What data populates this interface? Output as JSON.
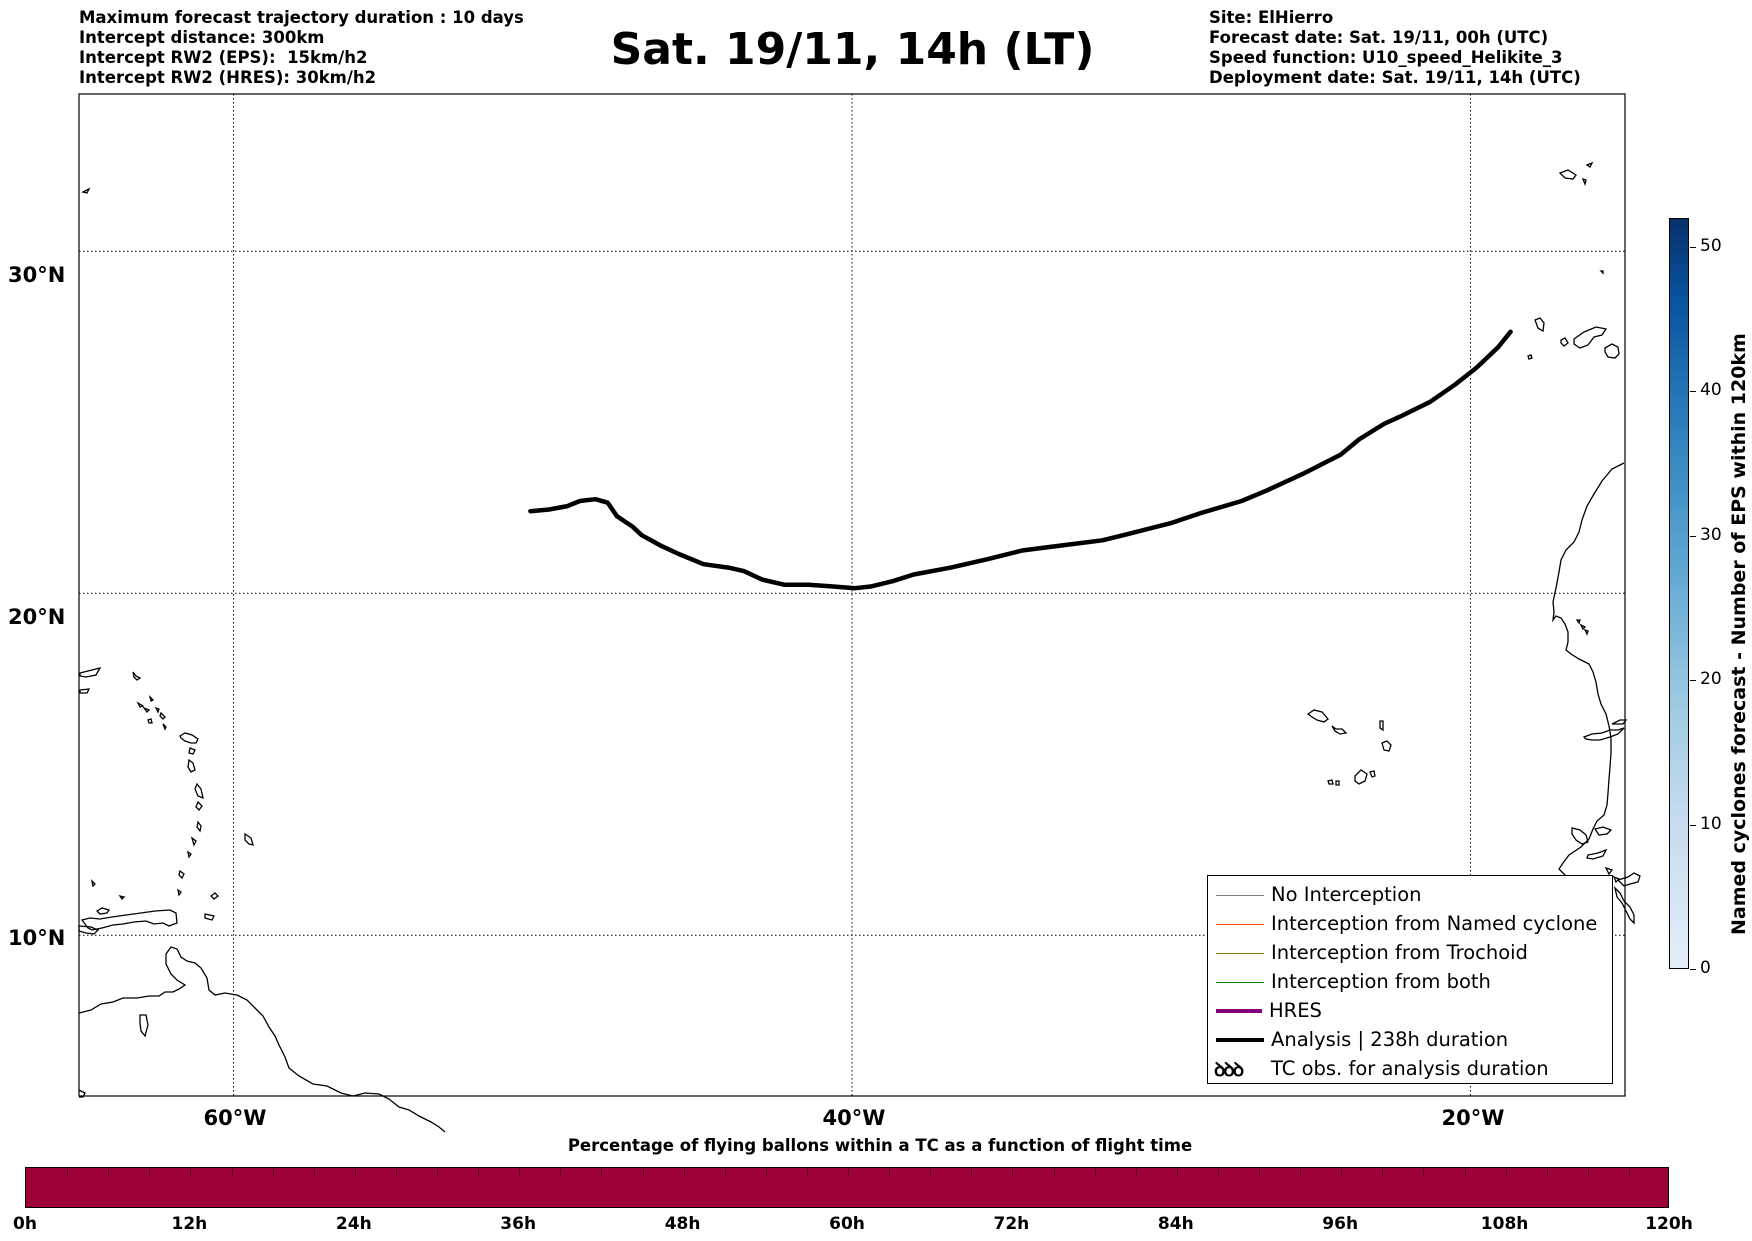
{
  "header": {
    "left_lines": [
      "Maximum forecast trajectory duration : 10 days",
      "Intercept distance: 300km",
      "Intercept RW2 (EPS):  15km/h2",
      "Intercept RW2 (HRES): 30km/h2"
    ],
    "title": "Sat. 19/11, 14h (LT)",
    "right_lines": [
      "Site: ElHierro",
      "Forecast date: Sat. 19/11, 00h (UTC)",
      "Speed function: U10_speed_Helikite_3",
      "Deployment date: Sat. 19/11, 14h (UTC)"
    ]
  },
  "map": {
    "projection": "plate-carree",
    "lon_range": [
      -65,
      -15
    ],
    "lat_range": [
      5.3,
      34.6
    ],
    "lat_labels": [
      {
        "value": 30,
        "label": "30°N"
      },
      {
        "value": 20,
        "label": "20°N"
      },
      {
        "value": 10,
        "label": "10°N"
      }
    ],
    "lon_labels": [
      {
        "value": -60,
        "label": "60°W"
      },
      {
        "value": -40,
        "label": "40°W"
      },
      {
        "value": -20,
        "label": "20°W"
      }
    ],
    "gridlines": true,
    "analysis_track": {
      "color": "#000000",
      "points": [
        [
          -50.4,
          22.4
        ],
        [
          -49.8,
          22.45
        ],
        [
          -49.2,
          22.55
        ],
        [
          -48.8,
          22.7
        ],
        [
          -48.3,
          22.75
        ],
        [
          -47.9,
          22.65
        ],
        [
          -47.6,
          22.25
        ],
        [
          -47.1,
          21.95
        ],
        [
          -46.8,
          21.7
        ],
        [
          -46.2,
          21.4
        ],
        [
          -45.6,
          21.15
        ],
        [
          -44.8,
          20.85
        ],
        [
          -44.0,
          20.75
        ],
        [
          -43.5,
          20.65
        ],
        [
          -42.9,
          20.4
        ],
        [
          -42.2,
          20.25
        ],
        [
          -41.4,
          20.25
        ],
        [
          -40.6,
          20.2
        ],
        [
          -39.9,
          20.15
        ],
        [
          -39.4,
          20.2
        ],
        [
          -38.7,
          20.35
        ],
        [
          -38.0,
          20.55
        ],
        [
          -36.8,
          20.75
        ],
        [
          -35.6,
          21.0
        ],
        [
          -34.5,
          21.25
        ],
        [
          -33.2,
          21.4
        ],
        [
          -31.9,
          21.55
        ],
        [
          -31.0,
          21.75
        ],
        [
          -29.7,
          22.05
        ],
        [
          -28.7,
          22.35
        ],
        [
          -27.4,
          22.7
        ],
        [
          -26.6,
          23.0
        ],
        [
          -25.4,
          23.5
        ],
        [
          -24.2,
          24.05
        ],
        [
          -23.6,
          24.5
        ],
        [
          -22.8,
          24.95
        ],
        [
          -22.2,
          25.2
        ],
        [
          -21.3,
          25.6
        ],
        [
          -20.5,
          26.1
        ],
        [
          -19.8,
          26.6
        ],
        [
          -19.1,
          27.2
        ],
        [
          -18.7,
          27.65
        ]
      ]
    }
  },
  "legend": {
    "items": [
      {
        "label": "No Interception",
        "color": "#808080",
        "width": 1,
        "symbol": "line"
      },
      {
        "label": "Interception from Named cyclone",
        "color": "#ff4500",
        "width": 1,
        "symbol": "line"
      },
      {
        "label": "Interception from Trochoid",
        "color": "#808000",
        "width": 1,
        "symbol": "line"
      },
      {
        "label": "Interception from both",
        "color": "#008000",
        "width": 1,
        "symbol": "line"
      },
      {
        "label": "HRES",
        "color": "#800080",
        "width": 4,
        "symbol": "line"
      },
      {
        "label": "Analysis | 238h duration",
        "color": "#000000",
        "width": 4,
        "symbol": "line"
      },
      {
        "label": "TC obs. for analysis duration",
        "color": "#000000",
        "width": 0,
        "symbol": "ꝺꝺꝺ"
      }
    ]
  },
  "colorbar_vertical": {
    "title": "Named cyclones forecast - Number of EPS within 120km",
    "min": 0,
    "max": 52,
    "ticks": [
      0,
      10,
      20,
      30,
      40,
      50
    ],
    "colormap": "Blues"
  },
  "colorbar_horizontal": {
    "title": "Percentage of flying ballons within a TC as a function of flight time",
    "fill_color": "#9e003a",
    "range_hours": [
      0,
      120
    ],
    "segment_hours": 3,
    "ticks": [
      "0h",
      "12h",
      "24h",
      "36h",
      "48h",
      "60h",
      "72h",
      "84h",
      "96h",
      "108h",
      "120h"
    ]
  }
}
